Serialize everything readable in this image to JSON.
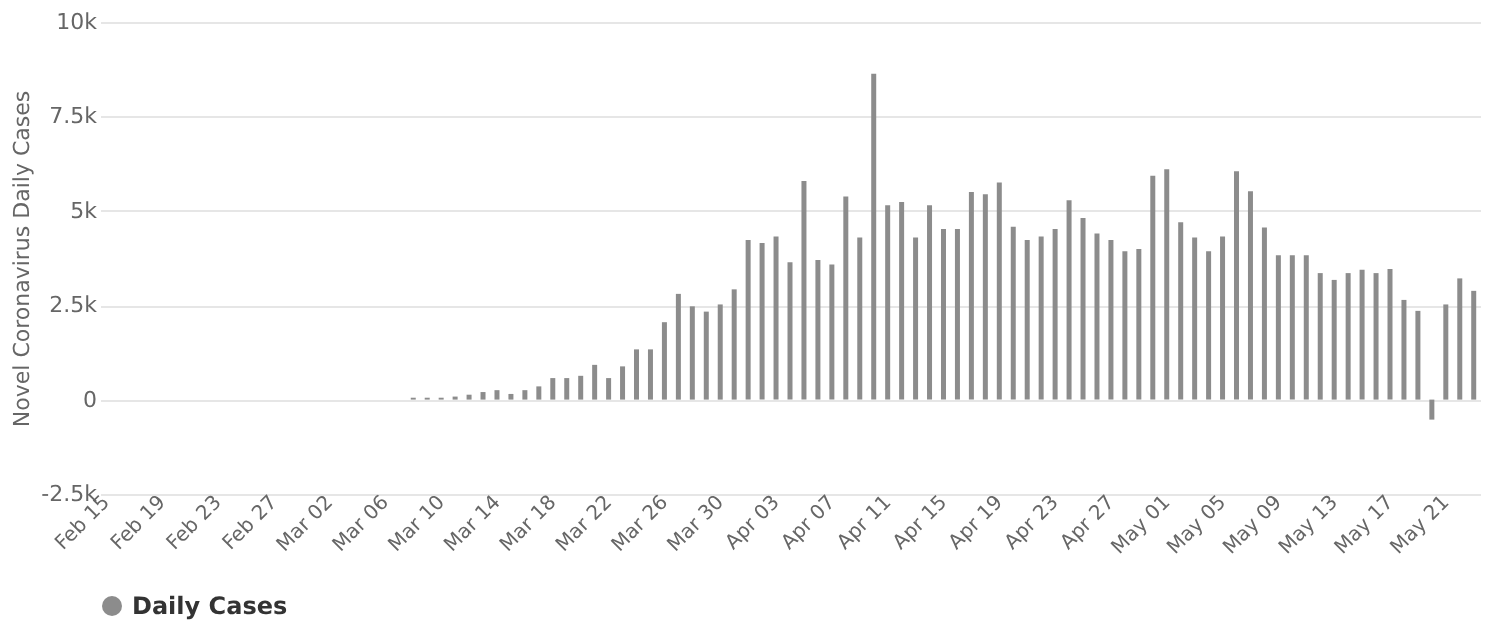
{
  "chart_data": {
    "type": "bar",
    "ylabel": "Novel Coronavirus Daily Cases",
    "categories": [
      "Feb 15",
      null,
      null,
      null,
      "Feb 19",
      null,
      null,
      null,
      "Feb 23",
      null,
      null,
      null,
      "Feb 27",
      null,
      null,
      null,
      "Mar 02",
      null,
      null,
      null,
      "Mar 06",
      null,
      null,
      null,
      "Mar 10",
      null,
      null,
      null,
      "Mar 14",
      null,
      null,
      null,
      "Mar 18",
      null,
      null,
      null,
      "Mar 22",
      null,
      null,
      null,
      "Mar 26",
      null,
      null,
      null,
      "Mar 30",
      null,
      null,
      null,
      "Apr 03",
      null,
      null,
      null,
      "Apr 07",
      null,
      null,
      null,
      "Apr 11",
      null,
      null,
      null,
      "Apr 15",
      null,
      null,
      null,
      "Apr 19",
      null,
      null,
      null,
      "Apr 23",
      null,
      null,
      null,
      "Apr 27",
      null,
      null,
      null,
      "May 01",
      null,
      null,
      null,
      "May 05",
      null,
      null,
      null,
      "May 09",
      null,
      null,
      null,
      "May 13",
      null,
      null,
      null,
      "May 17",
      null,
      null,
      null,
      "May 21",
      null,
      null
    ],
    "series": [
      {
        "name": "Daily Cases",
        "color": "#8c8c8c",
        "values": [
          0,
          0,
          0,
          0,
          0,
          0,
          0,
          0,
          0,
          0,
          0,
          0,
          0,
          0,
          0,
          0,
          0,
          0,
          0,
          0,
          0,
          0,
          50,
          50,
          50,
          80,
          130,
          200,
          250,
          150,
          250,
          350,
          570,
          570,
          630,
          920,
          570,
          880,
          1330,
          1330,
          2050,
          2800,
          2470,
          2330,
          2520,
          2920,
          4230,
          4150,
          4320,
          3640,
          5790,
          3700,
          3580,
          5380,
          4290,
          8630,
          5150,
          5230,
          4290,
          5150,
          4520,
          4520,
          5500,
          5440,
          5750,
          4580,
          4230,
          4320,
          4520,
          5280,
          4810,
          4400,
          4230,
          3930,
          3990,
          5930,
          6100,
          4700,
          4290,
          3930,
          4320,
          6050,
          5520,
          4560,
          3820,
          3820,
          3820,
          3350,
          3170,
          3350,
          3440,
          3350,
          3460,
          2640,
          2350,
          -530,
          2520,
          3210,
          2880
        ]
      }
    ],
    "ylim": [
      -2500,
      10000
    ],
    "yticks": [
      {
        "value": -2500,
        "label": "-2.5k"
      },
      0,
      {
        "value": 2500,
        "label": "2.5k"
      },
      {
        "value": 5000,
        "label": "5k"
      },
      {
        "value": 7500,
        "label": "7.5k"
      },
      {
        "value": 10000,
        "label": "10k"
      }
    ],
    "grid": "y",
    "legend": "bottom"
  }
}
